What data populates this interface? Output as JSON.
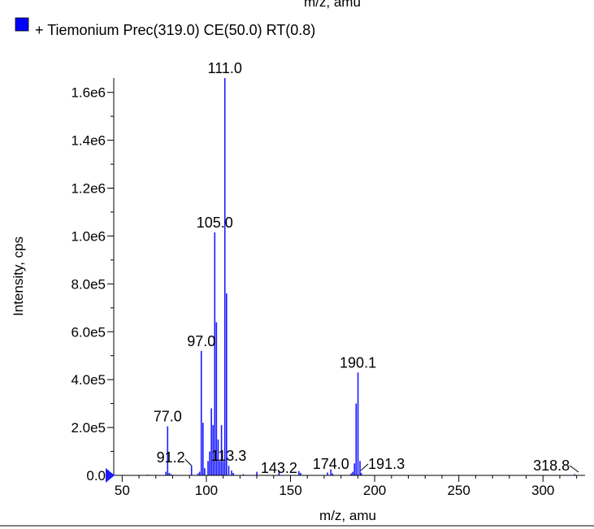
{
  "header_fragment": "m/z, amu",
  "chart_data": {
    "type": "bar",
    "title": "",
    "xlabel": "m/z, amu",
    "ylabel": "Intensity, cps",
    "xlim": [
      45,
      325
    ],
    "ylim": [
      0,
      1660000
    ],
    "x_ticks": [
      50,
      100,
      150,
      200,
      250,
      300
    ],
    "y_ticks": [
      0,
      200000,
      400000,
      600000,
      800000,
      1000000,
      1200000,
      1400000,
      1600000
    ],
    "y_tick_labels": [
      "0.0",
      "2.0e5",
      "4.0e5",
      "6.0e5",
      "8.0e5",
      "1.0e6",
      "1.2e6",
      "1.4e6",
      "1.6e6"
    ],
    "color": "#1a1aff",
    "legend": [
      {
        "name": "+ Tiemonium Prec(319.0) CE(50.0) RT(0.8)",
        "color": "#0000ff"
      }
    ],
    "series": [
      {
        "name": "+ Tiemonium Prec(319.0) CE(50.0) RT(0.8)",
        "x": [
          65.0,
          76.0,
          77.0,
          78.0,
          79.0,
          91.2,
          95.0,
          96.0,
          97.0,
          98.0,
          99.0,
          101.0,
          102.0,
          103.0,
          104.0,
          105.0,
          106.0,
          107.0,
          108.0,
          109.0,
          110.0,
          111.0,
          112.0,
          113.3,
          115.0,
          116.0,
          122.0,
          130.0,
          143.2,
          155.0,
          156.0,
          172.0,
          174.0,
          175.0,
          186.0,
          187.0,
          188.0,
          189.0,
          190.1,
          191.3,
          192.0,
          318.8
        ],
        "values": [
          3000,
          15000,
          205000,
          10000,
          5000,
          40000,
          8000,
          15000,
          520000,
          220000,
          30000,
          60000,
          100000,
          280000,
          210000,
          1015000,
          640000,
          150000,
          60000,
          210000,
          60000,
          1660000,
          760000,
          40000,
          20000,
          10000,
          5000,
          15000,
          20000,
          18000,
          10000,
          12000,
          25000,
          8000,
          8000,
          15000,
          50000,
          300000,
          430000,
          60000,
          10000,
          5000
        ]
      }
    ],
    "annotations": [
      {
        "label": "111.0",
        "x": 111.0
      },
      {
        "label": "105.0",
        "x": 105.0
      },
      {
        "label": "97.0",
        "x": 97.0
      },
      {
        "label": "190.1",
        "x": 190.1
      },
      {
        "label": "77.0",
        "x": 77.0
      },
      {
        "label": "91.2",
        "x": 91.2
      },
      {
        "label": "113.3",
        "x": 113.3
      },
      {
        "label": "143.2",
        "x": 143.2
      },
      {
        "label": "174.0",
        "x": 174.0
      },
      {
        "label": "191.3",
        "x": 191.3
      },
      {
        "label": "318.8",
        "x": 318.8
      }
    ]
  }
}
